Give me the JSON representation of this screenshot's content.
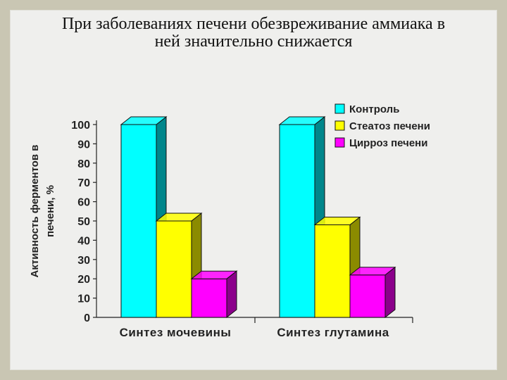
{
  "slide": {
    "title_lines": [
      "При заболеваниях печени обезвреживание аммиака в",
      "ней значительно снижается"
    ]
  },
  "chart_data": {
    "type": "bar",
    "title": "",
    "ylabel": "Активность ферментов в печени, %",
    "ylabel_lines": [
      "Активность ферментов в",
      "печени, %"
    ],
    "xlabel": "",
    "ylim": [
      0,
      100
    ],
    "yticks": [
      0,
      10,
      20,
      30,
      40,
      50,
      60,
      70,
      80,
      90,
      100
    ],
    "categories": [
      "Синтез мочевины",
      "Синтез глутамина"
    ],
    "series": [
      {
        "name": "Контроль",
        "values": [
          100,
          100
        ],
        "color": "#00ffff",
        "side_color": "#00868b"
      },
      {
        "name": "Стеатоз печени",
        "values": [
          50,
          48
        ],
        "color": "#ffff00",
        "side_color": "#8b8b00"
      },
      {
        "name": "Цирроз печени",
        "values": [
          20,
          22
        ],
        "color": "#ff00ff",
        "side_color": "#8b008b"
      }
    ],
    "legend_position": "top-right",
    "grid": false,
    "style": "3d-bar"
  }
}
